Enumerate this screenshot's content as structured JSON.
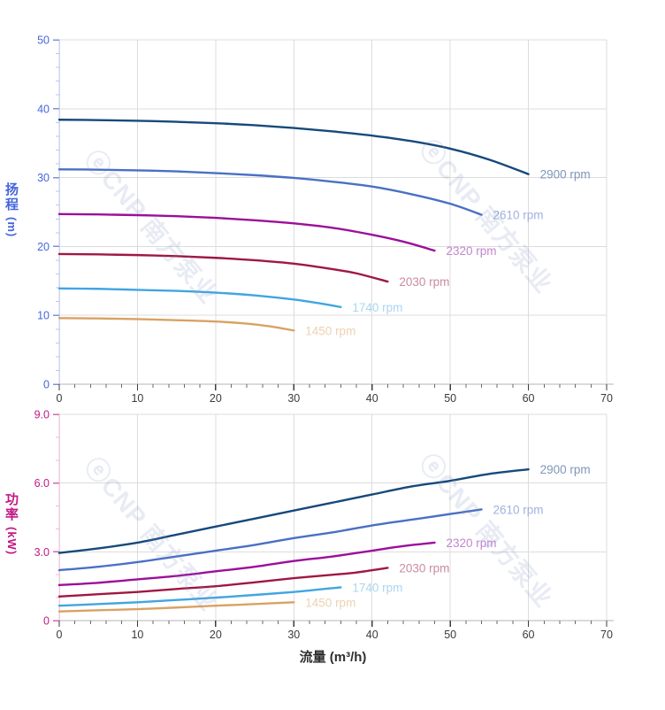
{
  "x_axis": {
    "title": "流量 (m³/h)",
    "min": 0,
    "max": 70,
    "minor_step": 2,
    "ticks": [
      {
        "v": 0,
        "label": "0"
      },
      {
        "v": 10,
        "label": "10"
      },
      {
        "v": 20,
        "label": "20"
      },
      {
        "v": 30,
        "label": "30"
      },
      {
        "v": 40,
        "label": "40"
      },
      {
        "v": 50,
        "label": "50"
      },
      {
        "v": 60,
        "label": "60"
      },
      {
        "v": 70,
        "label": "70"
      }
    ],
    "label_color": "#3a3a3a",
    "title_color": "#2e2e2e"
  },
  "watermark": {
    "text": "ⓔCNP 南方泵业",
    "color": "rgba(130,145,195,0.18)"
  },
  "chart_data": [
    {
      "type": "line",
      "id": "head",
      "title": "",
      "xlabel": "流量 (m³/h)",
      "ylabel": "扬程 (m)",
      "y_title": {
        "chars": [
          "扬",
          "程"
        ],
        "unit": "(m)"
      },
      "axis_title_color": "#4466dd",
      "axis_label_color": "#4466dd",
      "tick_color": "#7a93e0",
      "minor_tick_color": "#b9c6ef",
      "axis_line_color": "#ccd5f0",
      "xlim": [
        0,
        70
      ],
      "ylim": [
        0,
        50
      ],
      "y_minor_step": 2,
      "grid": true,
      "legend_position": "curve-end-labels",
      "y_ticks": [
        {
          "v": 0,
          "label": "0"
        },
        {
          "v": 10,
          "label": "10"
        },
        {
          "v": 20,
          "label": "20"
        },
        {
          "v": 30,
          "label": "30"
        },
        {
          "v": 40,
          "label": "40"
        },
        {
          "v": 50,
          "label": "50"
        }
      ],
      "series": [
        {
          "name": "2900 rpm",
          "color": "#16497c",
          "label_color": "#7e97ba",
          "points": [
            [
              0,
              38.4
            ],
            [
              5,
              38.35
            ],
            [
              10,
              38.25
            ],
            [
              15,
              38.1
            ],
            [
              20,
              37.9
            ],
            [
              25,
              37.6
            ],
            [
              30,
              37.2
            ],
            [
              35,
              36.7
            ],
            [
              40,
              36.1
            ],
            [
              45,
              35.3
            ],
            [
              50,
              34.2
            ],
            [
              55,
              32.6
            ],
            [
              60,
              30.5
            ]
          ]
        },
        {
          "name": "2610 rpm",
          "color": "#4a70c4",
          "label_color": "#9fb1de",
          "points": [
            [
              0,
              31.2
            ],
            [
              5,
              31.15
            ],
            [
              10,
              31.05
            ],
            [
              15,
              30.9
            ],
            [
              20,
              30.65
            ],
            [
              25,
              30.35
            ],
            [
              30,
              29.95
            ],
            [
              35,
              29.4
            ],
            [
              40,
              28.7
            ],
            [
              45,
              27.6
            ],
            [
              50,
              26.2
            ],
            [
              54,
              24.6
            ]
          ]
        },
        {
          "name": "2320 rpm",
          "color": "#9b0f9b",
          "label_color": "#c285ce",
          "points": [
            [
              0,
              24.7
            ],
            [
              5,
              24.65
            ],
            [
              10,
              24.55
            ],
            [
              15,
              24.4
            ],
            [
              20,
              24.15
            ],
            [
              25,
              23.8
            ],
            [
              30,
              23.35
            ],
            [
              35,
              22.7
            ],
            [
              40,
              21.7
            ],
            [
              44,
              20.7
            ],
            [
              48,
              19.4
            ]
          ]
        },
        {
          "name": "2030 rpm",
          "color": "#9e1843",
          "label_color": "#cb8ba0",
          "points": [
            [
              0,
              18.9
            ],
            [
              5,
              18.85
            ],
            [
              10,
              18.75
            ],
            [
              15,
              18.6
            ],
            [
              20,
              18.35
            ],
            [
              25,
              18.0
            ],
            [
              30,
              17.5
            ],
            [
              35,
              16.7
            ],
            [
              38,
              16.1
            ],
            [
              42,
              14.9
            ]
          ]
        },
        {
          "name": "1740 rpm",
          "color": "#41a5e1",
          "label_color": "#a9d6f2",
          "points": [
            [
              0,
              13.9
            ],
            [
              5,
              13.85
            ],
            [
              10,
              13.7
            ],
            [
              15,
              13.55
            ],
            [
              20,
              13.3
            ],
            [
              25,
              12.9
            ],
            [
              30,
              12.3
            ],
            [
              33,
              11.8
            ],
            [
              36,
              11.2
            ]
          ]
        },
        {
          "name": "1450 rpm",
          "color": "#d9a263",
          "label_color": "#ebd3b3",
          "points": [
            [
              0,
              9.6
            ],
            [
              5,
              9.55
            ],
            [
              10,
              9.45
            ],
            [
              15,
              9.3
            ],
            [
              20,
              9.1
            ],
            [
              24,
              8.8
            ],
            [
              27,
              8.4
            ],
            [
              30,
              7.8
            ]
          ]
        }
      ]
    },
    {
      "type": "line",
      "id": "power",
      "title": "",
      "xlabel": "流量 (m³/h)",
      "ylabel": "功率 (kW)",
      "y_title": {
        "chars": [
          "功",
          "率"
        ],
        "unit": "(kW)"
      },
      "axis_title_color": "#c21884",
      "axis_label_color": "#c21884",
      "tick_color": "#d667ae",
      "minor_tick_color": "#edb8d8",
      "axis_line_color": "#f0cce0",
      "xlim": [
        0,
        70
      ],
      "ylim": [
        0,
        9
      ],
      "y_minor_step": 1,
      "grid": true,
      "legend_position": "curve-end-labels",
      "y_ticks": [
        {
          "v": 0,
          "label": "0"
        },
        {
          "v": 3,
          "label": "3.0"
        },
        {
          "v": 6,
          "label": "6.0"
        },
        {
          "v": 9,
          "label": "9.0"
        }
      ],
      "series": [
        {
          "name": "2900 rpm",
          "color": "#16497c",
          "label_color": "#7e97ba",
          "points": [
            [
              0,
              2.95
            ],
            [
              5,
              3.15
            ],
            [
              10,
              3.4
            ],
            [
              15,
              3.75
            ],
            [
              20,
              4.1
            ],
            [
              25,
              4.45
            ],
            [
              30,
              4.8
            ],
            [
              35,
              5.15
            ],
            [
              40,
              5.5
            ],
            [
              45,
              5.85
            ],
            [
              50,
              6.1
            ],
            [
              55,
              6.4
            ],
            [
              60,
              6.6
            ]
          ]
        },
        {
          "name": "2610 rpm",
          "color": "#4a70c4",
          "label_color": "#9fb1de",
          "points": [
            [
              0,
              2.2
            ],
            [
              5,
              2.35
            ],
            [
              10,
              2.55
            ],
            [
              15,
              2.8
            ],
            [
              20,
              3.05
            ],
            [
              25,
              3.3
            ],
            [
              30,
              3.6
            ],
            [
              35,
              3.85
            ],
            [
              40,
              4.15
            ],
            [
              45,
              4.4
            ],
            [
              50,
              4.65
            ],
            [
              54,
              4.85
            ]
          ]
        },
        {
          "name": "2320 rpm",
          "color": "#9b0f9b",
          "label_color": "#c285ce",
          "points": [
            [
              0,
              1.55
            ],
            [
              5,
              1.65
            ],
            [
              10,
              1.8
            ],
            [
              15,
              1.95
            ],
            [
              20,
              2.15
            ],
            [
              25,
              2.35
            ],
            [
              30,
              2.6
            ],
            [
              35,
              2.8
            ],
            [
              40,
              3.05
            ],
            [
              44,
              3.25
            ],
            [
              48,
              3.4
            ]
          ]
        },
        {
          "name": "2030 rpm",
          "color": "#9e1843",
          "label_color": "#cb8ba0",
          "points": [
            [
              0,
              1.05
            ],
            [
              5,
              1.15
            ],
            [
              10,
              1.25
            ],
            [
              15,
              1.38
            ],
            [
              20,
              1.5
            ],
            [
              25,
              1.67
            ],
            [
              30,
              1.85
            ],
            [
              35,
              2.0
            ],
            [
              38,
              2.1
            ],
            [
              42,
              2.3
            ]
          ]
        },
        {
          "name": "1740 rpm",
          "color": "#41a5e1",
          "label_color": "#a9d6f2",
          "points": [
            [
              0,
              0.65
            ],
            [
              5,
              0.72
            ],
            [
              10,
              0.8
            ],
            [
              15,
              0.9
            ],
            [
              20,
              1.0
            ],
            [
              25,
              1.12
            ],
            [
              30,
              1.25
            ],
            [
              33,
              1.35
            ],
            [
              36,
              1.45
            ]
          ]
        },
        {
          "name": "1450 rpm",
          "color": "#d9a263",
          "label_color": "#ebd3b3",
          "points": [
            [
              0,
              0.4
            ],
            [
              5,
              0.45
            ],
            [
              10,
              0.5
            ],
            [
              15,
              0.57
            ],
            [
              20,
              0.65
            ],
            [
              25,
              0.72
            ],
            [
              30,
              0.8
            ]
          ]
        }
      ]
    }
  ]
}
